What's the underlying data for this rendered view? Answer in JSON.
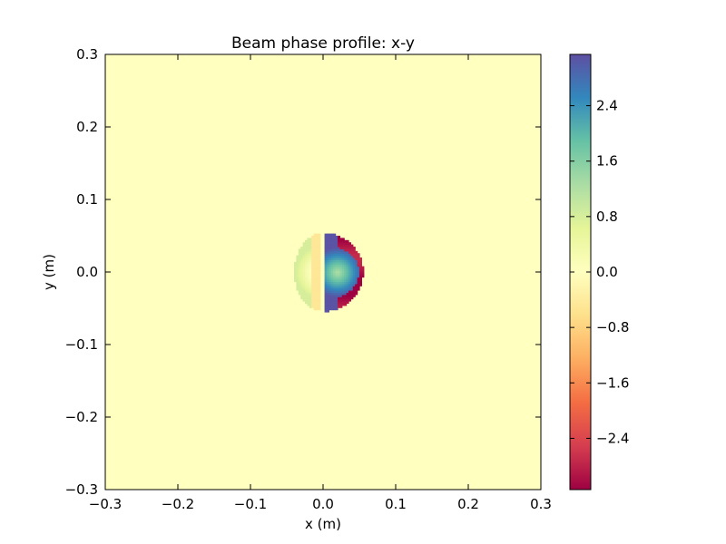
{
  "chart_data": {
    "type": "heatmap",
    "title": "Beam phase profile: x-y",
    "xlabel": "x (m)",
    "ylabel": "y (m)",
    "xlim": [
      -0.3,
      0.3
    ],
    "ylim": [
      -0.3,
      0.3
    ],
    "x_ticks": [
      -0.3,
      -0.2,
      -0.1,
      0.0,
      0.1,
      0.2,
      0.3
    ],
    "y_ticks": [
      -0.3,
      -0.2,
      -0.1,
      0.0,
      0.1,
      0.2,
      0.3
    ],
    "x_tick_labels": [
      "−0.3",
      "−0.2",
      "−0.1",
      "0.0",
      "0.1",
      "0.2",
      "0.3"
    ],
    "y_tick_labels": [
      "−0.3",
      "−0.2",
      "−0.1",
      "0.0",
      "0.1",
      "0.2",
      "0.3"
    ],
    "background_value": 0.0,
    "colorbar": {
      "colormap": "Spectral",
      "vmin": -3.14,
      "vmax": 3.14,
      "ticks": [
        -2.4,
        -1.6,
        -0.8,
        0.0,
        0.8,
        1.6,
        2.4
      ],
      "tick_labels": [
        "−2.4",
        "−1.6",
        "−0.8",
        "0.0",
        "0.8",
        "1.6",
        "2.4"
      ]
    },
    "beam": {
      "center": [
        0.0,
        0.0
      ],
      "radius": 0.055,
      "left_half_phase": [
        0.2,
        0.8
      ],
      "left_half_center_phase": -0.6,
      "right_half_phase": [
        1.2,
        3.1
      ],
      "right_edge_phase": -3.0
    }
  }
}
